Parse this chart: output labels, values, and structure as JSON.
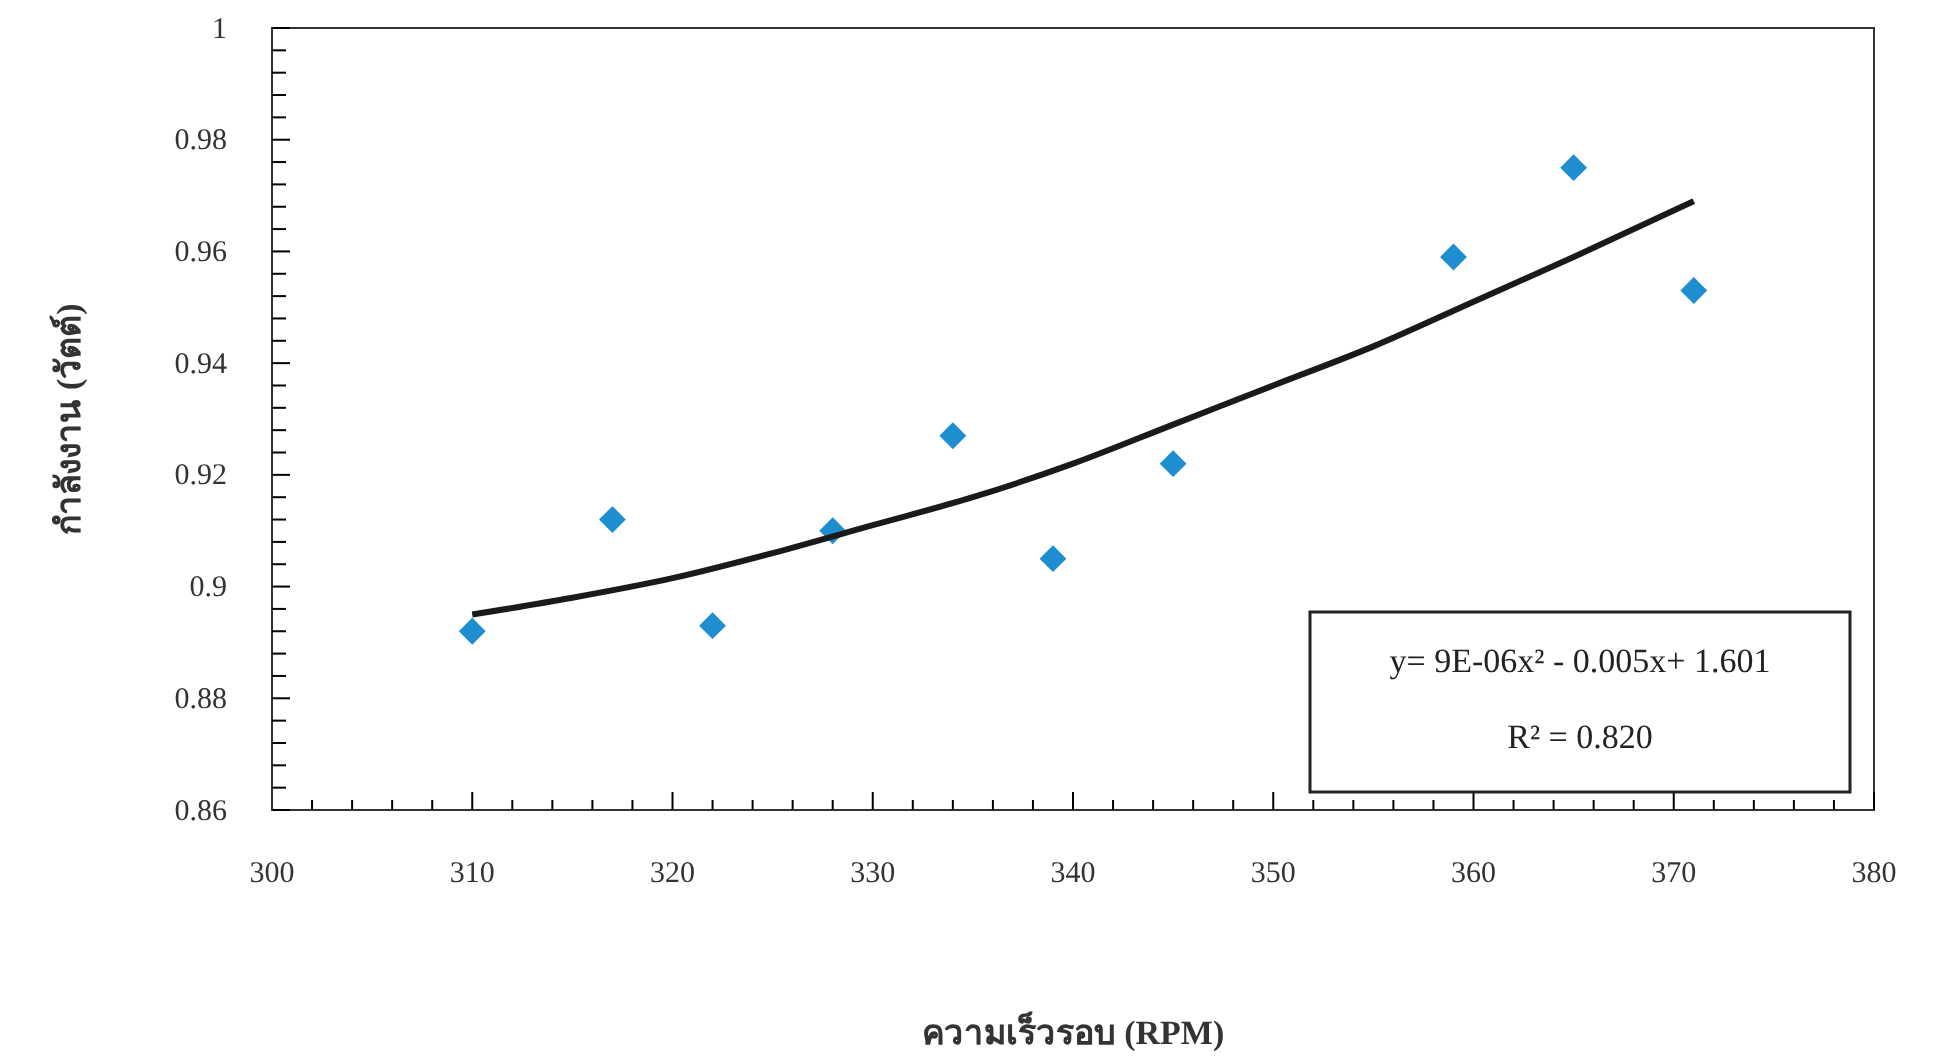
{
  "chart_data": {
    "type": "scatter",
    "xlabel": "ความเร็วรอบ (RPM)",
    "ylabel": "กำลังงาน (วัตต์)",
    "xlim": [
      300,
      380
    ],
    "xticks": [
      300,
      {
        "value": 302,
        "label": null
      },
      {
        "value": 304,
        "label": null
      },
      {
        "value": 306,
        "label": null
      },
      {
        "value": 308,
        "label": null
      },
      310,
      {
        "value": 312,
        "label": null
      },
      {
        "value": 314,
        "label": null
      },
      {
        "value": 316,
        "label": null
      },
      {
        "value": 318,
        "label": null
      },
      320,
      {
        "value": 322,
        "label": null
      },
      {
        "value": 324,
        "label": null
      },
      {
        "value": 326,
        "label": null
      },
      {
        "value": 328,
        "label": null
      },
      330,
      {
        "value": 332,
        "label": null
      },
      {
        "value": 334,
        "label": null
      },
      {
        "value": 336,
        "label": null
      },
      {
        "value": 338,
        "label": null
      },
      340,
      {
        "value": 342,
        "label": null
      },
      {
        "value": 344,
        "label": null
      },
      {
        "value": 346,
        "label": null
      },
      {
        "value": 348,
        "label": null
      },
      350,
      {
        "value": 352,
        "label": null
      },
      {
        "value": 354,
        "label": null
      },
      {
        "value": 356,
        "label": null
      },
      {
        "value": 358,
        "label": null
      },
      360,
      {
        "value": 362,
        "label": null
      },
      {
        "value": 364,
        "label": null
      },
      {
        "value": 366,
        "label": null
      },
      {
        "value": 368,
        "label": null
      },
      370,
      {
        "value": 372,
        "label": null
      },
      {
        "value": 374,
        "label": null
      },
      {
        "value": 376,
        "label": null
      },
      {
        "value": 378,
        "label": null
      },
      380
    ],
    "ylim": [
      0.86,
      1
    ],
    "yticks": [
      0.86,
      {
        "value": 0.864,
        "label": null
      },
      {
        "value": 0.868,
        "label": null
      },
      {
        "value": 0.872,
        "label": null
      },
      {
        "value": 0.876,
        "label": null
      },
      0.88,
      {
        "value": 0.884,
        "label": null
      },
      {
        "value": 0.888,
        "label": null
      },
      {
        "value": 0.892,
        "label": null
      },
      {
        "value": 0.896,
        "label": null
      },
      {
        "value": 0.9,
        "label": "0.9"
      },
      {
        "value": 0.904,
        "label": null
      },
      {
        "value": 0.908,
        "label": null
      },
      {
        "value": 0.912,
        "label": null
      },
      {
        "value": 0.916,
        "label": null
      },
      0.92,
      {
        "value": 0.924,
        "label": null
      },
      {
        "value": 0.928,
        "label": null
      },
      {
        "value": 0.932,
        "label": null
      },
      {
        "value": 0.936,
        "label": null
      },
      0.94,
      {
        "value": 0.944,
        "label": null
      },
      {
        "value": 0.948,
        "label": null
      },
      {
        "value": 0.952,
        "label": null
      },
      {
        "value": 0.956,
        "label": null
      },
      0.96,
      {
        "value": 0.964,
        "label": null
      },
      {
        "value": 0.968,
        "label": null
      },
      {
        "value": 0.972,
        "label": null
      },
      {
        "value": 0.976,
        "label": null
      },
      0.98,
      {
        "value": 0.984,
        "label": null
      },
      {
        "value": 0.988,
        "label": null
      },
      {
        "value": 0.992,
        "label": null
      },
      {
        "value": 0.996,
        "label": null
      },
      1
    ],
    "series": [
      {
        "marker": "diamond",
        "color": "#1e8ed0",
        "x": [
          310,
          317,
          322,
          328,
          334,
          339,
          345,
          359,
          365,
          371
        ],
        "values": [
          0.892,
          0.912,
          0.893,
          0.91,
          0.927,
          0.905,
          0.922,
          0.959,
          0.975,
          0.953
        ]
      },
      {
        "type": "line",
        "color": "#1a1a1a",
        "x": [
          310,
          315,
          320,
          325,
          330,
          335,
          340,
          345,
          350,
          355,
          360,
          365,
          371
        ],
        "values": [
          0.895,
          0.898,
          0.9015,
          0.906,
          0.911,
          0.916,
          0.922,
          0.929,
          0.936,
          0.943,
          0.951,
          0.959,
          0.969
        ]
      }
    ],
    "annotations": [
      "y= 9E-06x² - 0.005x+ 1.601",
      "R² = 0.820"
    ]
  }
}
